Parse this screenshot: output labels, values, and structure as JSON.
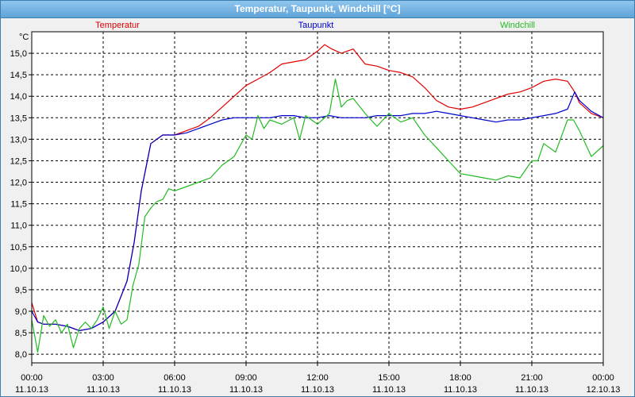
{
  "window": {
    "title": "Temperatur, Taupunkt, Windchill [°C]"
  },
  "colors": {
    "temperatur": "#e00000",
    "taupunkt": "#0000cc",
    "windchill": "#22bb22",
    "plot_bg": "#ffffff",
    "grid": "#000000"
  },
  "chart_data": {
    "type": "line",
    "title": "Temperatur, Taupunkt, Windchill [°C]",
    "ylabel": "°C",
    "xlabel": "",
    "ylim": [
      7.8,
      15.5
    ],
    "xlim": [
      0,
      24
    ],
    "grid": true,
    "legend_placement": "top",
    "yticks": [
      8.0,
      8.5,
      9.0,
      9.5,
      10.0,
      10.5,
      11.0,
      11.5,
      12.0,
      12.5,
      13.0,
      13.5,
      14.0,
      14.5,
      15.0
    ],
    "ytick_labels": [
      "8,0",
      "8,5",
      "9,0",
      "9,5",
      "10,0",
      "10,5",
      "11,0",
      "11,5",
      "12,0",
      "12,5",
      "13,0",
      "13,5",
      "14,0",
      "14,5",
      "15,0"
    ],
    "xticks": [
      {
        "time": "00:00",
        "date": "11.10.13"
      },
      {
        "time": "03:00",
        "date": "11.10.13"
      },
      {
        "time": "06:00",
        "date": "11.10.13"
      },
      {
        "time": "09:00",
        "date": "11.10.13"
      },
      {
        "time": "12:00",
        "date": "11.10.13"
      },
      {
        "time": "15:00",
        "date": "11.10.13"
      },
      {
        "time": "18:00",
        "date": "11.10.13"
      },
      {
        "time": "21:00",
        "date": "11.10.13"
      },
      {
        "time": "00:00",
        "date": "12.10.13"
      }
    ],
    "series": [
      {
        "name": "Temperatur",
        "color": "#e00000",
        "x": [
          0,
          0.25,
          0.5,
          1,
          1.5,
          2,
          2.5,
          3,
          3.5,
          4,
          4.3,
          4.6,
          5,
          5.5,
          6,
          6.5,
          7,
          7.5,
          8,
          8.5,
          9,
          9.5,
          10,
          10.5,
          11,
          11.5,
          12,
          12.3,
          12.6,
          13,
          13.5,
          14,
          14.5,
          15,
          15.5,
          16,
          16.5,
          17,
          17.5,
          18,
          18.5,
          19,
          19.5,
          20,
          20.5,
          21,
          21.5,
          22,
          22.5,
          22.8,
          23,
          23.5,
          24
        ],
        "y": [
          9.2,
          8.75,
          8.7,
          8.7,
          8.65,
          8.55,
          8.6,
          8.75,
          9.0,
          9.7,
          10.6,
          11.8,
          12.9,
          13.1,
          13.1,
          13.2,
          13.3,
          13.5,
          13.75,
          14.0,
          14.25,
          14.4,
          14.55,
          14.75,
          14.8,
          14.85,
          15.05,
          15.2,
          15.1,
          15.0,
          15.1,
          14.75,
          14.7,
          14.6,
          14.55,
          14.45,
          14.2,
          13.9,
          13.75,
          13.7,
          13.75,
          13.85,
          13.95,
          14.05,
          14.1,
          14.2,
          14.35,
          14.4,
          14.35,
          14.1,
          13.85,
          13.6,
          13.5
        ]
      },
      {
        "name": "Taupunkt",
        "color": "#0000cc",
        "x": [
          0,
          0.25,
          0.5,
          1,
          1.5,
          2,
          2.5,
          3,
          3.5,
          4,
          4.3,
          4.6,
          5,
          5.5,
          6,
          6.5,
          7,
          7.5,
          8,
          8.5,
          9,
          9.5,
          10,
          10.5,
          11,
          11.5,
          12,
          12.5,
          13,
          13.5,
          14,
          14.5,
          15,
          15.5,
          16,
          16.5,
          17,
          17.5,
          18,
          18.5,
          19,
          19.5,
          20,
          20.5,
          21,
          21.5,
          22,
          22.5,
          22.8,
          23,
          23.5,
          24
        ],
        "y": [
          9.0,
          8.75,
          8.7,
          8.7,
          8.65,
          8.55,
          8.6,
          8.75,
          9.0,
          9.7,
          10.6,
          11.8,
          12.9,
          13.1,
          13.1,
          13.15,
          13.25,
          13.35,
          13.45,
          13.5,
          13.5,
          13.5,
          13.5,
          13.55,
          13.55,
          13.5,
          13.5,
          13.55,
          13.5,
          13.5,
          13.5,
          13.55,
          13.55,
          13.55,
          13.6,
          13.6,
          13.65,
          13.6,
          13.55,
          13.5,
          13.45,
          13.4,
          13.45,
          13.45,
          13.5,
          13.55,
          13.6,
          13.7,
          14.1,
          13.9,
          13.65,
          13.5
        ]
      },
      {
        "name": "Windchill",
        "color": "#22bb22",
        "x": [
          0,
          0.25,
          0.5,
          0.75,
          1,
          1.25,
          1.5,
          1.75,
          2,
          2.25,
          2.5,
          2.75,
          3,
          3.25,
          3.5,
          3.75,
          4,
          4.25,
          4.5,
          4.75,
          5,
          5.25,
          5.5,
          5.75,
          6,
          6.5,
          7,
          7.5,
          8,
          8.5,
          9,
          9.25,
          9.5,
          9.75,
          10,
          10.5,
          11,
          11.25,
          11.5,
          12,
          12.5,
          12.75,
          13,
          13.25,
          13.5,
          14,
          14.5,
          15,
          15.5,
          16,
          16.5,
          17,
          17.5,
          18,
          18.5,
          19,
          19.5,
          20,
          20.5,
          21,
          21.25,
          21.5,
          22,
          22.5,
          22.75,
          23,
          23.5,
          24
        ],
        "y": [
          8.8,
          8.05,
          8.9,
          8.65,
          8.8,
          8.5,
          8.7,
          8.15,
          8.6,
          8.75,
          8.6,
          8.8,
          9.1,
          8.6,
          9.0,
          8.7,
          8.8,
          9.6,
          10.1,
          11.2,
          11.4,
          11.55,
          11.6,
          11.85,
          11.8,
          11.9,
          12.0,
          12.1,
          12.4,
          12.6,
          13.1,
          13.0,
          13.55,
          13.25,
          13.45,
          13.35,
          13.5,
          13.0,
          13.55,
          13.35,
          13.6,
          14.4,
          13.75,
          13.9,
          13.95,
          13.6,
          13.3,
          13.6,
          13.4,
          13.5,
          13.1,
          12.8,
          12.5,
          12.2,
          12.15,
          12.1,
          12.05,
          12.15,
          12.1,
          12.5,
          12.5,
          12.9,
          12.7,
          13.45,
          13.45,
          13.2,
          12.6,
          12.85
        ]
      }
    ]
  }
}
